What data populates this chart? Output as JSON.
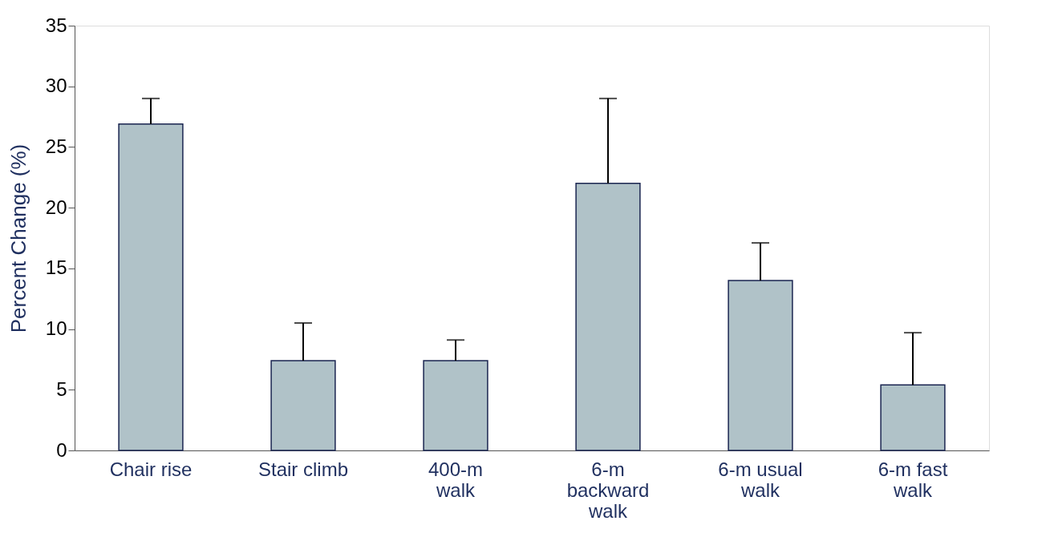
{
  "chart_data": {
    "type": "bar",
    "ylabel": "Percent Change  (%)",
    "categories": [
      "Chair rise",
      "Stair climb",
      "400-m\nwalk",
      "6-m\nbackward\nwalk",
      "6-m usual\nwalk",
      "6-m fast\nwalk"
    ],
    "values": [
      26.9,
      7.4,
      7.4,
      22.0,
      14.0,
      5.4
    ],
    "errors": [
      [
        26.9,
        29.0
      ],
      [
        7.4,
        10.5
      ],
      [
        7.4,
        9.1
      ],
      [
        22.0,
        29.0
      ],
      [
        14.0,
        17.1
      ],
      [
        5.4,
        9.7
      ]
    ],
    "color": "#b0c2c8",
    "ylim": [
      0,
      35
    ],
    "yticks": [
      0,
      5,
      10,
      15,
      20,
      25,
      30,
      35
    ],
    "grid": false
  }
}
